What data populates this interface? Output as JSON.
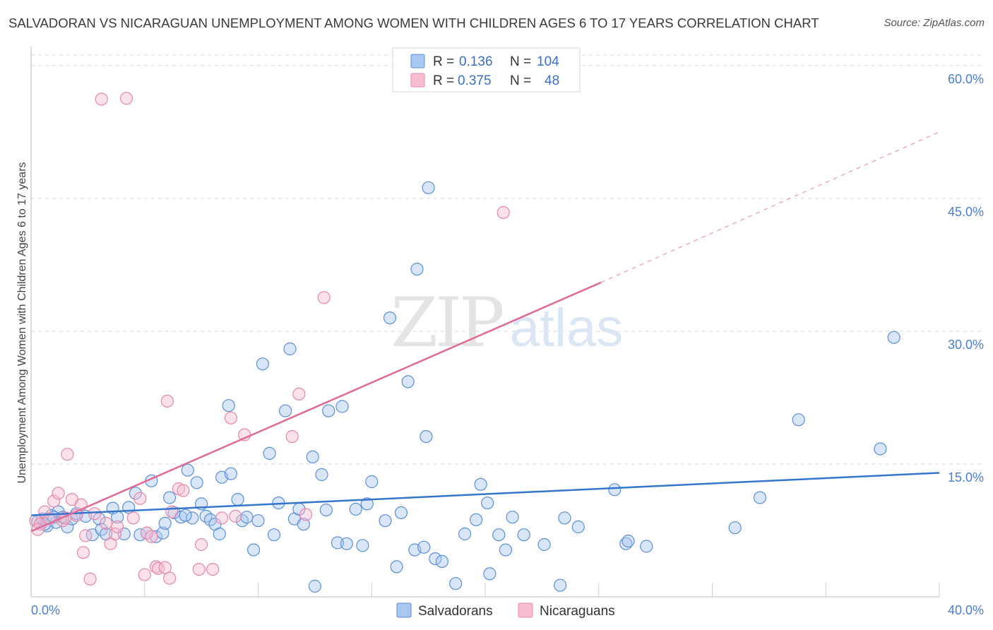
{
  "title": "SALVADORAN VS NICARAGUAN UNEMPLOYMENT AMONG WOMEN WITH CHILDREN AGES 6 TO 17 YEARS CORRELATION CHART",
  "source": "Source: ZipAtlas.com",
  "watermark": {
    "zip": "ZIP",
    "atlas": "atlas"
  },
  "colors": {
    "salvadoran_fill": "#a9c8f0",
    "salvadoran_stroke": "#5b8fd6",
    "salvadoran_line": "#3575cc",
    "nicaraguan_fill": "#f6bcd0",
    "nicaraguan_stroke": "#e488a8",
    "nicaraguan_line": "#e06a96",
    "axis_text": "#4a7fd0",
    "grid": "#d9d9d9"
  },
  "stats_legend": [
    {
      "r_label": "R =",
      "r_value": "0.136",
      "n_label": "N =",
      "n_value": "104"
    },
    {
      "r_label": "R =",
      "r_value": "0.375",
      "n_label": "N =",
      "n_value": "48"
    }
  ],
  "chart_data": {
    "type": "scatter",
    "title": "SALVADORAN VS NICARAGUAN UNEMPLOYMENT AMONG WOMEN WITH CHILDREN AGES 6 TO 17 YEARS CORRELATION CHART",
    "ylabel": "Unemployment Among Women with Children Ages 6 to 17 years",
    "xlabel": "",
    "xlim": [
      0,
      40
    ],
    "ylim": [
      0,
      61.5
    ],
    "y_ticks": [
      15,
      30,
      45,
      60
    ],
    "y_tick_labels": [
      "15.0%",
      "30.0%",
      "45.0%",
      "60.0%"
    ],
    "x_tick_labels": [
      "0.0%",
      "40.0%"
    ],
    "grid": true,
    "legend": "bottom-center",
    "series": [
      {
        "name": "Salvadorans",
        "trend": {
          "x1": 0,
          "y1": 9.2,
          "x2": 40,
          "y2": 14.0
        },
        "points": [
          [
            0.3,
            8.5
          ],
          [
            0.5,
            8.8
          ],
          [
            0.7,
            8.0
          ],
          [
            0.9,
            9.2
          ],
          [
            1.1,
            8.4
          ],
          [
            1.2,
            9.6
          ],
          [
            1.4,
            9.0
          ],
          [
            1.6,
            7.9
          ],
          [
            1.8,
            8.8
          ],
          [
            2.0,
            9.4
          ],
          [
            2.4,
            9.1
          ],
          [
            2.7,
            7.0
          ],
          [
            3.0,
            8.8
          ],
          [
            3.1,
            7.6
          ],
          [
            3.3,
            7.1
          ],
          [
            3.6,
            10.0
          ],
          [
            3.8,
            9.0
          ],
          [
            4.3,
            10.1
          ],
          [
            4.6,
            11.7
          ],
          [
            4.8,
            7.0
          ],
          [
            5.1,
            7.2
          ],
          [
            5.3,
            13.1
          ],
          [
            5.5,
            6.8
          ],
          [
            5.8,
            7.2
          ],
          [
            5.9,
            8.3
          ],
          [
            6.1,
            11.2
          ],
          [
            6.3,
            9.5
          ],
          [
            6.6,
            9.0
          ],
          [
            6.9,
            14.3
          ],
          [
            7.1,
            8.9
          ],
          [
            7.3,
            12.9
          ],
          [
            7.5,
            10.5
          ],
          [
            7.7,
            9.1
          ],
          [
            7.9,
            8.7
          ],
          [
            8.1,
            8.2
          ],
          [
            8.3,
            7.1
          ],
          [
            8.4,
            13.5
          ],
          [
            8.7,
            21.6
          ],
          [
            8.8,
            13.9
          ],
          [
            9.1,
            11.0
          ],
          [
            9.3,
            8.6
          ],
          [
            9.5,
            9.0
          ],
          [
            9.8,
            5.3
          ],
          [
            10.0,
            8.6
          ],
          [
            10.2,
            26.3
          ],
          [
            10.5,
            16.2
          ],
          [
            10.7,
            7.0
          ],
          [
            10.9,
            10.6
          ],
          [
            11.2,
            21.0
          ],
          [
            11.4,
            28.0
          ],
          [
            11.6,
            8.8
          ],
          [
            11.8,
            9.9
          ],
          [
            12.0,
            8.2
          ],
          [
            12.4,
            15.8
          ],
          [
            12.5,
            1.2
          ],
          [
            12.8,
            13.8
          ],
          [
            13.0,
            9.8
          ],
          [
            13.1,
            21.0
          ],
          [
            13.5,
            6.1
          ],
          [
            13.7,
            21.5
          ],
          [
            13.9,
            6.0
          ],
          [
            14.3,
            9.9
          ],
          [
            14.6,
            5.8
          ],
          [
            14.8,
            10.5
          ],
          [
            15.0,
            13.0
          ],
          [
            15.6,
            8.6
          ],
          [
            15.8,
            31.5
          ],
          [
            16.1,
            3.4
          ],
          [
            16.3,
            9.5
          ],
          [
            16.6,
            24.3
          ],
          [
            16.9,
            5.3
          ],
          [
            17.0,
            37.0
          ],
          [
            17.3,
            5.6
          ],
          [
            17.4,
            18.1
          ],
          [
            17.5,
            46.2
          ],
          [
            17.8,
            4.3
          ],
          [
            18.1,
            4.0
          ],
          [
            18.7,
            1.5
          ],
          [
            19.1,
            7.1
          ],
          [
            19.6,
            8.7
          ],
          [
            19.8,
            12.7
          ],
          [
            20.1,
            10.6
          ],
          [
            20.2,
            2.6
          ],
          [
            20.6,
            7.0
          ],
          [
            20.9,
            5.3
          ],
          [
            21.2,
            9.0
          ],
          [
            21.7,
            7.0
          ],
          [
            22.6,
            5.9
          ],
          [
            23.3,
            1.3
          ],
          [
            23.5,
            8.9
          ],
          [
            24.1,
            7.9
          ],
          [
            25.7,
            12.1
          ],
          [
            26.2,
            6.0
          ],
          [
            26.3,
            6.3
          ],
          [
            27.1,
            5.7
          ],
          [
            31.0,
            7.8
          ],
          [
            32.1,
            11.2
          ],
          [
            33.8,
            20.0
          ],
          [
            37.4,
            16.7
          ],
          [
            38.0,
            29.3
          ],
          [
            0.6,
            8.2
          ],
          [
            1.0,
            9.0
          ],
          [
            4.1,
            7.1
          ],
          [
            6.8,
            9.2
          ]
        ]
      },
      {
        "name": "Nicaraguans",
        "trend": {
          "x1": 0,
          "y1": 7.4,
          "x2": 25.1,
          "y2": 35.5,
          "dash_to_x": 40,
          "dash_to_y": 52.5
        },
        "points": [
          [
            0.2,
            8.6
          ],
          [
            0.4,
            8.2
          ],
          [
            0.6,
            9.6
          ],
          [
            0.8,
            8.8
          ],
          [
            1.0,
            10.8
          ],
          [
            1.2,
            11.7
          ],
          [
            1.4,
            8.6
          ],
          [
            1.6,
            16.1
          ],
          [
            1.8,
            11.0
          ],
          [
            2.0,
            9.2
          ],
          [
            2.2,
            10.4
          ],
          [
            2.3,
            5.0
          ],
          [
            2.4,
            6.9
          ],
          [
            2.6,
            2.0
          ],
          [
            2.8,
            9.4
          ],
          [
            3.1,
            56.2
          ],
          [
            3.3,
            8.3
          ],
          [
            3.5,
            6.0
          ],
          [
            3.7,
            7.1
          ],
          [
            3.8,
            7.9
          ],
          [
            4.2,
            56.3
          ],
          [
            4.5,
            8.9
          ],
          [
            4.8,
            11.1
          ],
          [
            5.0,
            2.5
          ],
          [
            5.1,
            7.2
          ],
          [
            5.3,
            6.8
          ],
          [
            5.5,
            3.4
          ],
          [
            5.6,
            3.2
          ],
          [
            5.9,
            3.3
          ],
          [
            6.0,
            22.1
          ],
          [
            6.1,
            2.1
          ],
          [
            6.2,
            9.6
          ],
          [
            6.5,
            12.2
          ],
          [
            6.7,
            12.0
          ],
          [
            7.4,
            3.1
          ],
          [
            7.5,
            5.9
          ],
          [
            8.0,
            3.1
          ],
          [
            8.4,
            8.9
          ],
          [
            8.8,
            20.2
          ],
          [
            9.0,
            9.1
          ],
          [
            9.4,
            18.3
          ],
          [
            11.5,
            18.1
          ],
          [
            11.8,
            22.9
          ],
          [
            12.1,
            9.3
          ],
          [
            12.9,
            33.8
          ],
          [
            20.8,
            43.4
          ],
          [
            0.3,
            7.6
          ],
          [
            1.5,
            8.9
          ]
        ]
      }
    ]
  },
  "bottom_legend": [
    {
      "label": "Salvadorans"
    },
    {
      "label": "Nicaraguans"
    }
  ]
}
